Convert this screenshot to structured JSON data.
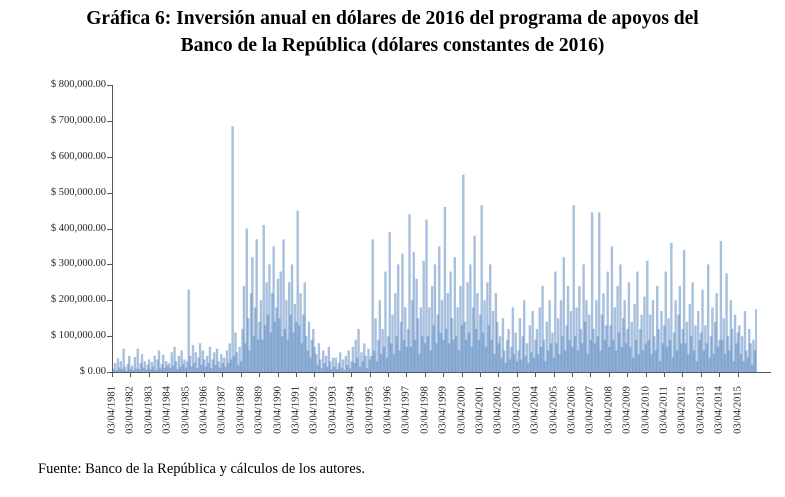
{
  "figure": {
    "title_line1": "Gráfica 6: Inversión anual en dólares de 2016 del programa de apoyos del",
    "title_line2": "Banco de la República (dólares constantes de 2016)",
    "source": "Fuente: Banco de la República y cálculos de los autores."
  },
  "colors": {
    "bar_fill": "#4f81bd",
    "bar_fill_opacity": 0.5,
    "axis": "#595959",
    "tick_label": "#262626",
    "title_text": "#000000"
  },
  "chart_data": {
    "type": "bar",
    "title": "Gráfica 6: Inversión anual en dólares de 2016 del programa de apoyos del Banco de la República (dólares constantes de 2016)",
    "xlabel": "",
    "ylabel": "",
    "grid": false,
    "legend": "none",
    "ylim": [
      0,
      800000
    ],
    "ytick_step": 100000,
    "ytick_labels_bottom_to_top": [
      "$ 0.00",
      "$ 100,000.00",
      "$ 200,000.00",
      "$ 300,000.00",
      "$ 400,000.00",
      "$ 500,000.00",
      "$ 600,000.00",
      "$ 700,000.00",
      "$ 800,000.00"
    ],
    "xtick_labels": [
      "03/04/1981",
      "03/04/1982",
      "03/04/1983",
      "03/04/1984",
      "03/04/1985",
      "03/04/1986",
      "03/04/1987",
      "03/04/1988",
      "03/04/1989",
      "03/04/1990",
      "03/04/1991",
      "03/04/1992",
      "03/04/1993",
      "03/04/1994",
      "03/04/1995",
      "03/04/1996",
      "03/04/1997",
      "03/04/1998",
      "03/04/1999",
      "03/04/2000",
      "03/04/2001",
      "03/04/2002",
      "03/04/2003",
      "03/04/2004",
      "03/04/2005",
      "03/04/2006",
      "03/04/2007",
      "03/04/2008",
      "03/04/2009",
      "03/04/2010",
      "03/04/2011",
      "03/04/2012",
      "03/04/2013",
      "03/04/2014",
      "03/04/2015"
    ],
    "bars_per_year": 13,
    "values": [
      10000,
      25000,
      5000,
      38000,
      12000,
      30000,
      8000,
      65000,
      15000,
      3000,
      22000,
      45000,
      9000,
      18000,
      5000,
      42000,
      10000,
      65000,
      8000,
      25000,
      50000,
      12000,
      30000,
      6000,
      20000,
      35000,
      8000,
      28000,
      15000,
      45000,
      5000,
      35000,
      60000,
      10000,
      22000,
      48000,
      12000,
      30000,
      18000,
      25000,
      10000,
      55000,
      18000,
      70000,
      30000,
      8000,
      45000,
      15000,
      60000,
      22000,
      35000,
      12000,
      30000,
      230000,
      45000,
      15000,
      75000,
      25000,
      55000,
      10000,
      40000,
      80000,
      20000,
      60000,
      35000,
      15000,
      45000,
      25000,
      70000,
      10000,
      35000,
      55000,
      20000,
      65000,
      30000,
      12000,
      50000,
      25000,
      40000,
      15000,
      60000,
      25000,
      80000,
      35000,
      685000,
      45000,
      110000,
      55000,
      20000,
      70000,
      30000,
      120000,
      240000,
      80000,
      400000,
      150000,
      60000,
      220000,
      320000,
      100000,
      180000,
      370000,
      90000,
      140000,
      200000,
      90000,
      410000,
      130000,
      250000,
      160000,
      300000,
      110000,
      220000,
      350000,
      140000,
      180000,
      260000,
      150000,
      280000,
      100000,
      370000,
      120000,
      200000,
      90000,
      250000,
      160000,
      300000,
      110000,
      190000,
      140000,
      450000,
      130000,
      220000,
      80000,
      160000,
      250000,
      100000,
      60000,
      140000,
      40000,
      90000,
      120000,
      70000,
      50000,
      20000,
      80000,
      35000,
      10000,
      60000,
      25000,
      45000,
      15000,
      70000,
      30000,
      8000,
      40000,
      15000,
      40000,
      8000,
      25000,
      55000,
      12000,
      35000,
      5000,
      45000,
      20000,
      60000,
      10000,
      30000,
      70000,
      25000,
      90000,
      40000,
      120000,
      15000,
      55000,
      30000,
      80000,
      45000,
      10000,
      65000,
      35000,
      45000,
      370000,
      60000,
      150000,
      30000,
      90000,
      200000,
      50000,
      120000,
      70000,
      280000,
      40000,
      100000,
      390000,
      80000,
      160000,
      50000,
      220000,
      100000,
      300000,
      60000,
      140000,
      330000,
      90000,
      180000,
      70000,
      120000,
      440000,
      70000,
      200000,
      335000,
      90000,
      260000,
      150000,
      50000,
      180000,
      100000,
      310000,
      80000,
      425000,
      100000,
      180000,
      60000,
      240000,
      130000,
      300000,
      80000,
      160000,
      350000,
      110000,
      200000,
      90000,
      460000,
      120000,
      220000,
      80000,
      280000,
      150000,
      90000,
      320000,
      100000,
      180000,
      60000,
      240000,
      130000,
      550000,
      140000,
      90000,
      250000,
      110000,
      300000,
      70000,
      180000,
      380000,
      120000,
      220000,
      90000,
      160000,
      465000,
      110000,
      200000,
      70000,
      250000,
      130000,
      300000,
      90000,
      170000,
      50000,
      220000,
      140000,
      80000,
      100000,
      40000,
      150000,
      60000,
      25000,
      90000,
      120000,
      35000,
      70000,
      180000,
      50000,
      110000,
      30000,
      60000,
      150000,
      35000,
      100000,
      200000,
      45000,
      80000,
      25000,
      130000,
      55000,
      170000,
      40000,
      90000,
      120000,
      50000,
      180000,
      70000,
      240000,
      90000,
      30000,
      140000,
      60000,
      200000,
      80000,
      110000,
      40000,
      280000,
      80000,
      150000,
      50000,
      200000,
      100000,
      320000,
      60000,
      130000,
      240000,
      90000,
      170000,
      70000,
      465000,
      100000,
      180000,
      60000,
      240000,
      120000,
      80000,
      300000,
      140000,
      200000,
      50000,
      160000,
      90000,
      445000,
      120000,
      80000,
      200000,
      100000,
      445000,
      60000,
      160000,
      220000,
      90000,
      130000,
      280000,
      70000,
      130000,
      350000,
      90000,
      180000,
      60000,
      240000,
      110000,
      300000,
      70000,
      150000,
      200000,
      80000,
      120000,
      250000,
      70000,
      140000,
      40000,
      190000,
      90000,
      280000,
      50000,
      120000,
      160000,
      60000,
      210000,
      80000,
      310000,
      90000,
      160000,
      50000,
      200000,
      100000,
      60000,
      240000,
      120000,
      30000,
      170000,
      80000,
      130000,
      280000,
      70000,
      150000,
      90000,
      360000,
      40000,
      110000,
      200000,
      60000,
      160000,
      240000,
      80000,
      120000,
      340000,
      80000,
      140000,
      50000,
      190000,
      100000,
      250000,
      60000,
      130000,
      30000,
      170000,
      90000,
      110000,
      230000,
      60000,
      130000,
      80000,
      300000,
      40000,
      100000,
      180000,
      50000,
      140000,
      220000,
      70000,
      90000,
      365000,
      90000,
      150000,
      50000,
      275000,
      100000,
      60000,
      200000,
      120000,
      30000,
      160000,
      80000,
      110000,
      130000,
      50000,
      100000,
      30000,
      170000,
      60000,
      40000,
      120000,
      80000,
      20000,
      90000,
      60000,
      175000
    ]
  }
}
